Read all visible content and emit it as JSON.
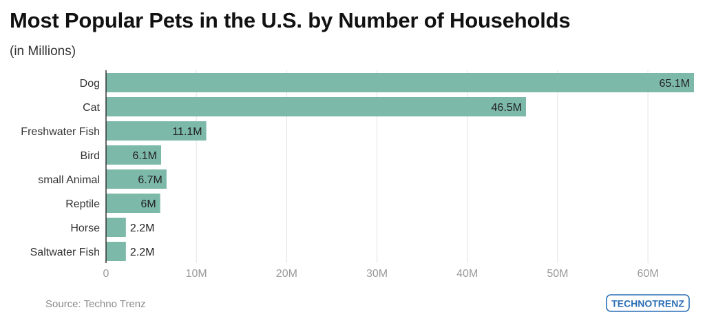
{
  "header": {
    "title": "Most Popular Pets in the U.S. by Number of Households",
    "subtitle": "(in Millions)"
  },
  "footer": {
    "source": "Source: Techno Trenz",
    "logo_text": "TECHNOTRENZ"
  },
  "colors": {
    "bar": "#7db9a9",
    "grid": "#e3e3e3",
    "axis": "#333333",
    "tick_label": "#9a9a9a",
    "category_label": "#333333",
    "value_label": "#222222",
    "logo": "#2a6fb5"
  },
  "chart_data": {
    "type": "bar",
    "orientation": "horizontal",
    "categories": [
      "Dog",
      "Cat",
      "Freshwater Fish",
      "Bird",
      "small Animal",
      "Reptile",
      "Horse",
      "Saltwater Fish"
    ],
    "values": [
      65.1,
      46.5,
      11.1,
      6.1,
      6.7,
      6,
      2.2,
      2.2
    ],
    "value_labels": [
      "65.1M",
      "46.5M",
      "11.1M",
      "6.1M",
      "6.7M",
      "6M",
      "2.2M",
      "2.2M"
    ],
    "xlim": [
      0,
      65.1
    ],
    "xticks": [
      0,
      10,
      20,
      30,
      40,
      50,
      60
    ],
    "xtick_labels": [
      "0",
      "10M",
      "20M",
      "30M",
      "40M",
      "50M",
      "60M"
    ],
    "grid": true
  }
}
